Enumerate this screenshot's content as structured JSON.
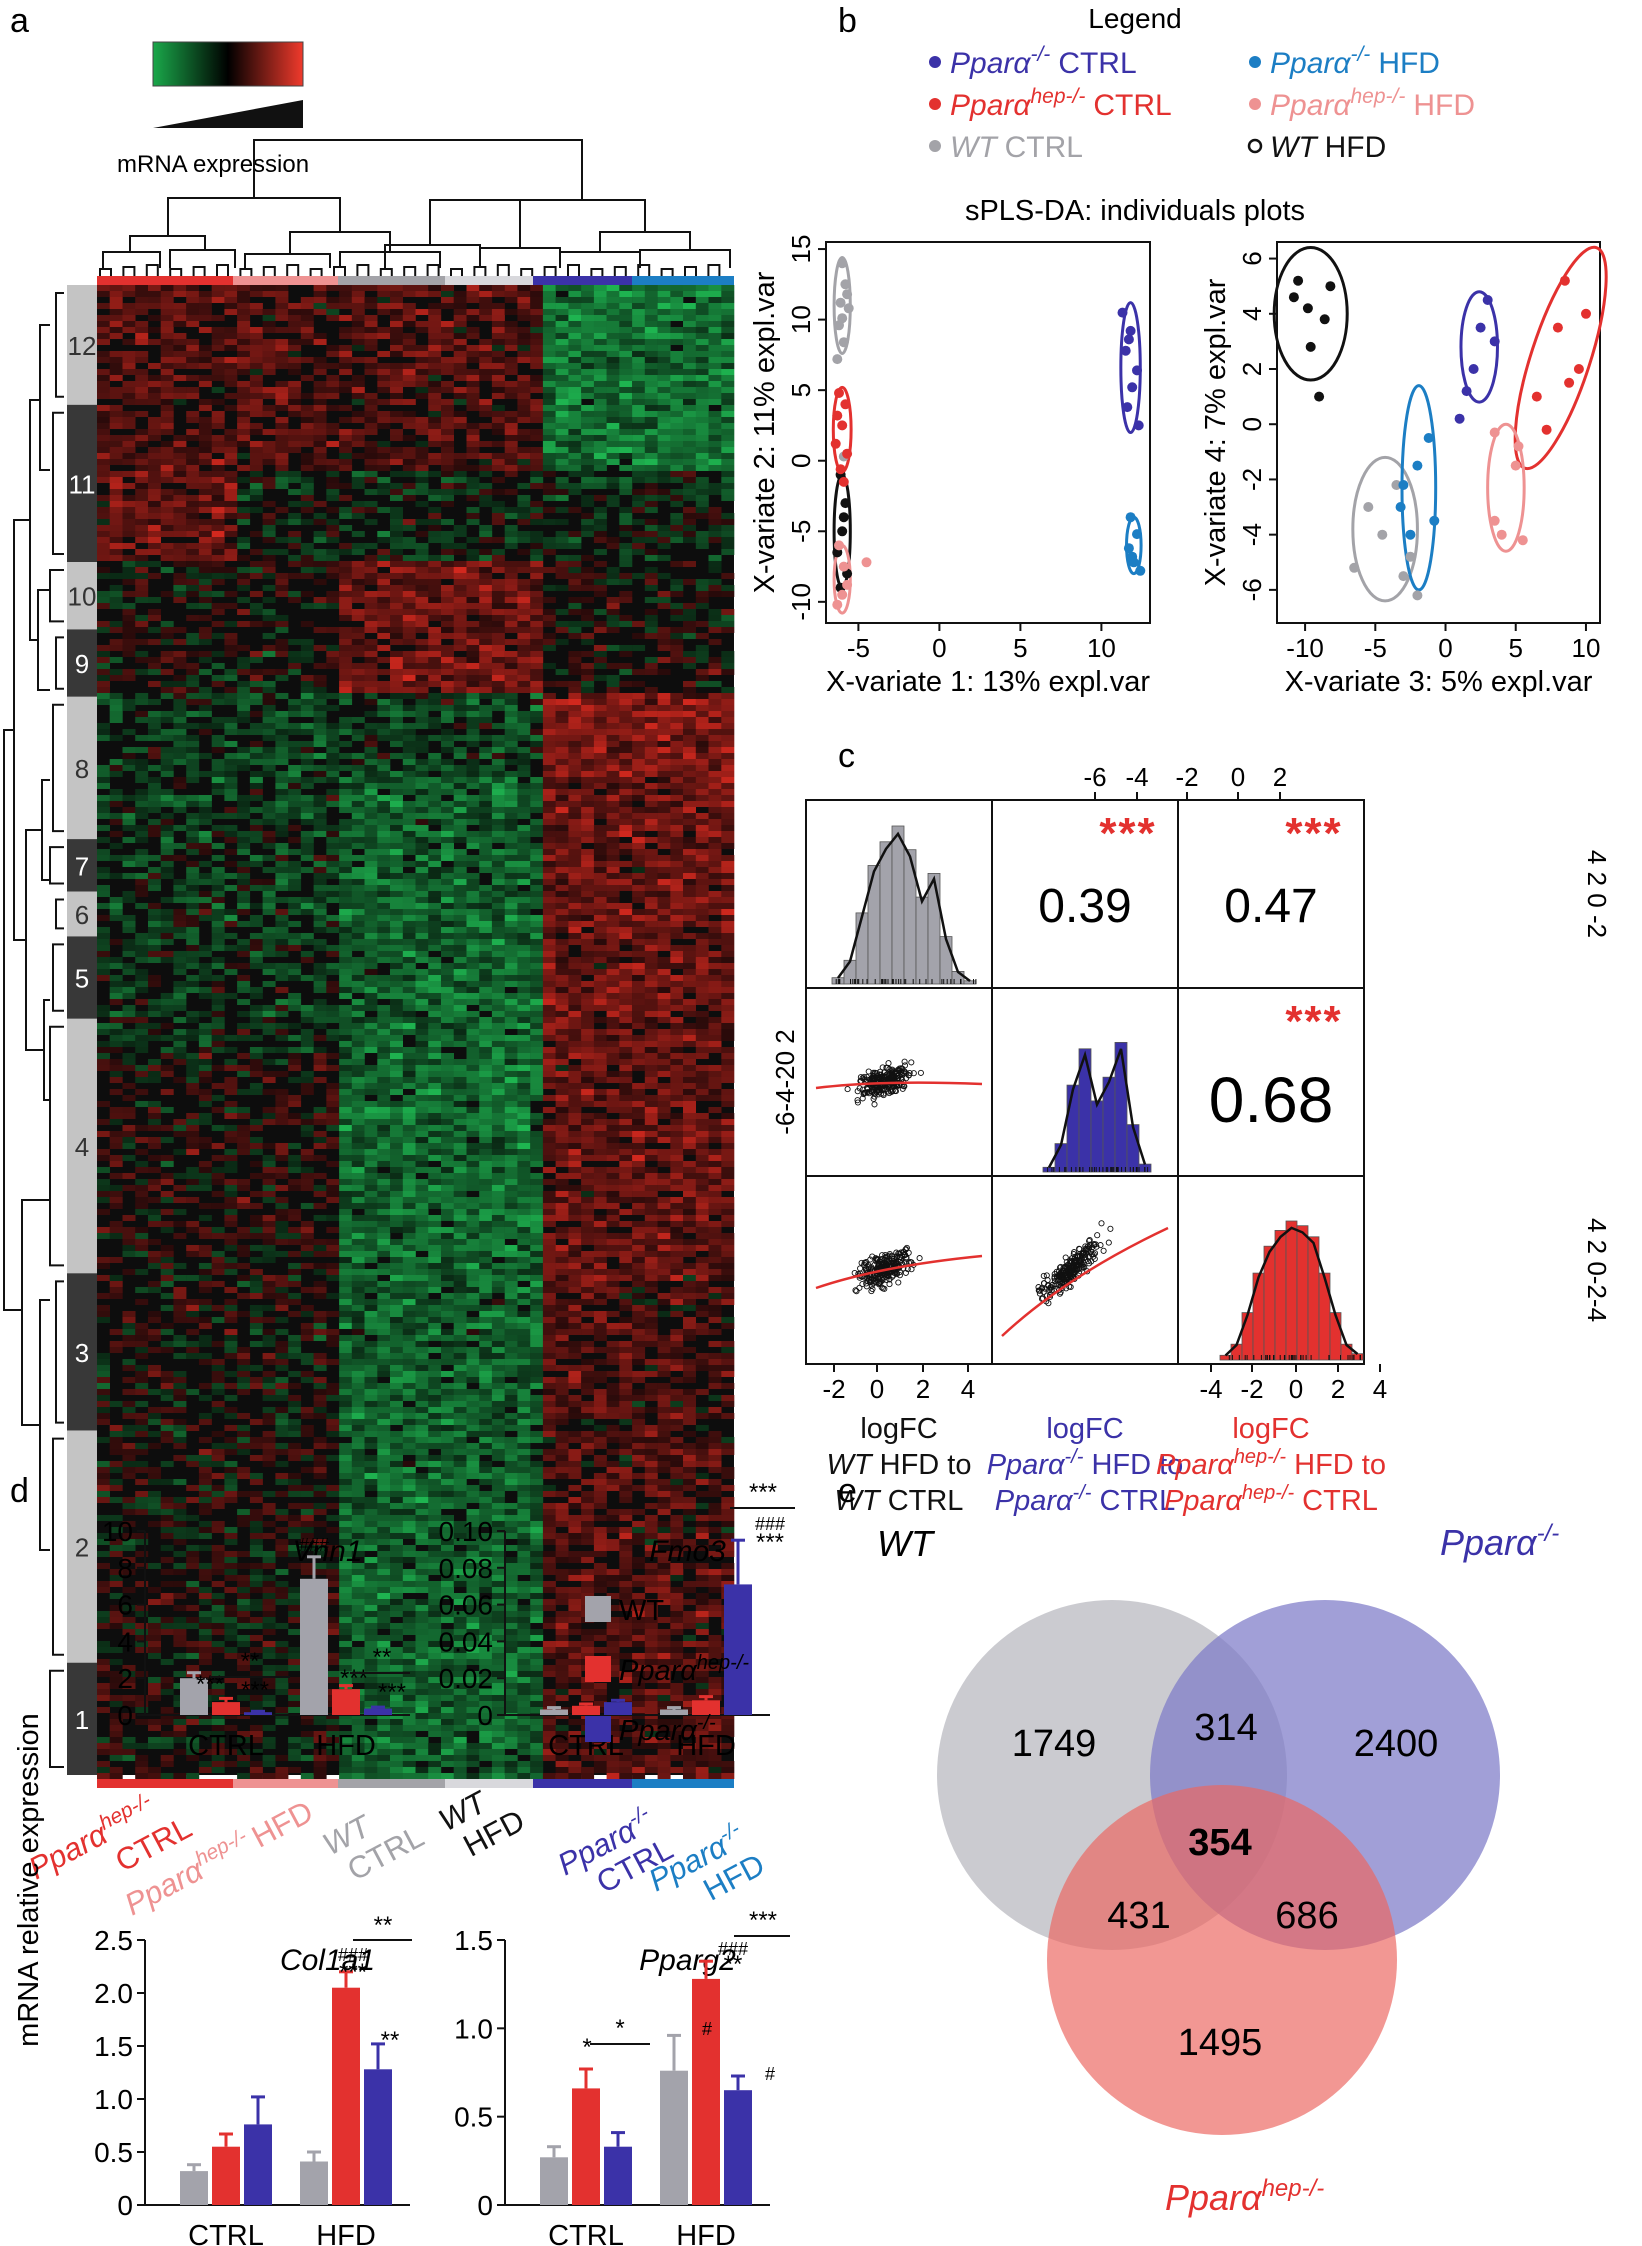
{
  "panels": {
    "a": "a",
    "b": "b",
    "c": "c",
    "d": "d",
    "e": "e"
  },
  "colors": {
    "ppara_ctrl": "#3b32a8",
    "ppara_hfd": "#1c7ec4",
    "hep_ctrl": "#e3312f",
    "hep_hfd": "#ee9292",
    "wt_ctrl": "#a3a3a8",
    "wt_hfd": "#111111",
    "wt_bar": "#a3a3ab",
    "hep_bar": "#e3312f",
    "ppara_bar": "#3b32a8",
    "venn_wt": "#c2c2c8",
    "venn_ppara": "#7d7ac7",
    "venn_hep": "#ec6560"
  },
  "heatmap": {
    "scale_label": "mRNA expression",
    "clusters": [
      "12",
      "11",
      "10",
      "9",
      "8",
      "7",
      "6",
      "5",
      "4",
      "3",
      "2",
      "1"
    ],
    "group_labels": [
      {
        "name": "Pparα",
        "sup": "hep-/-",
        "cond": "CTRL"
      },
      {
        "name": "Pparα",
        "sup": "hep-/-",
        "cond": "HFD"
      },
      {
        "name": "WT",
        "sup": "",
        "cond": "CTRL"
      },
      {
        "name": "WT",
        "sup": "",
        "cond": "HFD"
      },
      {
        "name": "Pparα",
        "sup": "-/-",
        "cond": "CTRL"
      },
      {
        "name": "Pparα",
        "sup": "-/-",
        "cond": "HFD"
      }
    ]
  },
  "legend": {
    "title": "Legend",
    "entries": [
      {
        "name": "Pparα",
        "sup": "-/-",
        "cond": "CTRL"
      },
      {
        "name": "Pparα",
        "sup": "-/-",
        "cond": "HFD"
      },
      {
        "name": "Pparα",
        "sup": "hep-/-",
        "cond": "CTRL"
      },
      {
        "name": "Pparα",
        "sup": "hep-/-",
        "cond": "HFD"
      },
      {
        "name": "WT",
        "sup": "",
        "cond": "CTRL"
      },
      {
        "name": "WT",
        "sup": "",
        "cond": "HFD"
      }
    ]
  },
  "chart_data": [
    {
      "type": "scatter",
      "id": "splsda_1_2",
      "title": "sPLS-DA: individuals plots",
      "xlabel": "X-variate 1: 13% expl.var",
      "ylabel": "X-variate 2: 11% expl.var",
      "xlim": [
        -7,
        13
      ],
      "ylim": [
        -11.5,
        15.5
      ],
      "xticks": [
        -5,
        0,
        5,
        10
      ],
      "yticks": [
        -10,
        -5,
        0,
        5,
        10,
        15
      ],
      "series": [
        {
          "name": "WT CTRL",
          "points": [
            [
              -6.0,
              14
            ],
            [
              -5.8,
              12.5
            ],
            [
              -6.1,
              11.2
            ],
            [
              -5.6,
              10.8
            ],
            [
              -6.2,
              9.6
            ],
            [
              -5.9,
              8.4
            ],
            [
              -6.3,
              7.2
            ],
            [
              -5.7,
              11.8
            ],
            [
              -6.0,
              10.1
            ],
            [
              -5.9,
              0.3
            ]
          ]
        },
        {
          "name": "WT HFD",
          "points": [
            [
              -6.1,
              -1
            ],
            [
              -5.8,
              -3
            ],
            [
              -6.0,
              -5
            ],
            [
              -6.3,
              -6.5
            ],
            [
              -5.7,
              -8
            ],
            [
              -6.1,
              -9
            ],
            [
              -5.9,
              -4
            ]
          ]
        },
        {
          "name": "Pparα hep-/- CTRL",
          "points": [
            [
              -6.2,
              4.8
            ],
            [
              -5.8,
              4
            ],
            [
              -6.0,
              2.5
            ],
            [
              -6.4,
              1.2
            ],
            [
              -5.7,
              0.5
            ],
            [
              -6.1,
              -0.6
            ],
            [
              -6.3,
              3.2
            ],
            [
              -5.9,
              -1.5
            ]
          ]
        },
        {
          "name": "Pparα hep-/- HFD",
          "points": [
            [
              -6.0,
              -9.5
            ],
            [
              -5.7,
              -8.8
            ],
            [
              -6.3,
              -10.2
            ],
            [
              -5.9,
              -7.5
            ],
            [
              -4.5,
              -7.2
            ],
            [
              -6.2,
              -6
            ]
          ]
        },
        {
          "name": "Pparα-/- CTRL",
          "points": [
            [
              11.3,
              10.5
            ],
            [
              11.8,
              9.2
            ],
            [
              11.5,
              7.8
            ],
            [
              12.2,
              6.4
            ],
            [
              11.9,
              5.2
            ],
            [
              11.6,
              3.8
            ],
            [
              12.3,
              2.5
            ],
            [
              11.7,
              8.6
            ]
          ]
        },
        {
          "name": "Pparα-/- HFD",
          "points": [
            [
              11.8,
              -4
            ],
            [
              12.2,
              -5.2
            ],
            [
              11.7,
              -6.2
            ],
            [
              12.0,
              -7.2
            ],
            [
              12.4,
              -7.8
            ],
            [
              11.9,
              -6.8
            ]
          ]
        }
      ]
    },
    {
      "type": "scatter",
      "id": "splsda_3_4",
      "xlabel": "X-variate 3: 5% expl.var",
      "ylabel": "X-variate 4: 7% expl.var",
      "xlim": [
        -12,
        11
      ],
      "ylim": [
        -7.2,
        6.6
      ],
      "xticks": [
        -10,
        -5,
        0,
        5,
        10
      ],
      "yticks": [
        -6,
        -4,
        -2,
        0,
        2,
        4,
        6
      ],
      "series": [
        {
          "name": "WT CTRL",
          "points": [
            [
              -6.5,
              -5.2
            ],
            [
              -4.5,
              -4
            ],
            [
              -3,
              -5.5
            ],
            [
              -2,
              -6.2
            ],
            [
              -5.5,
              -3
            ],
            [
              -3.5,
              -2.2
            ],
            [
              -2.5,
              -4.8
            ]
          ]
        },
        {
          "name": "WT HFD",
          "points": [
            [
              -10.5,
              5.2
            ],
            [
              -9.8,
              4.2
            ],
            [
              -8.6,
              3.8
            ],
            [
              -9.6,
              2.8
            ],
            [
              -8.2,
              5.0
            ],
            [
              -10.8,
              4.6
            ],
            [
              -9.0,
              1.0
            ]
          ]
        },
        {
          "name": "Pparα hep-/- CTRL",
          "points": [
            [
              6.5,
              1
            ],
            [
              8,
              3.5
            ],
            [
              8.5,
              5.2
            ],
            [
              9.5,
              2
            ],
            [
              10,
              4
            ],
            [
              7.2,
              -0.2
            ],
            [
              8.8,
              1.5
            ]
          ]
        },
        {
          "name": "Pparα hep-/- HFD",
          "points": [
            [
              3.5,
              -0.3
            ],
            [
              5,
              -1.5
            ],
            [
              3.5,
              -3.5
            ],
            [
              4,
              -4
            ],
            [
              5.2,
              -0.8
            ],
            [
              5.5,
              -4.2
            ]
          ]
        },
        {
          "name": "Pparα-/- CTRL",
          "points": [
            [
              1,
              0.2
            ],
            [
              2,
              2
            ],
            [
              2.5,
              3.5
            ],
            [
              3,
              4.5
            ],
            [
              3.5,
              3
            ],
            [
              1.5,
              1.2
            ]
          ]
        },
        {
          "name": "Pparα-/- HFD",
          "points": [
            [
              -3.2,
              -3
            ],
            [
              -2,
              -1.5
            ],
            [
              -1.2,
              -0.5
            ],
            [
              -2.5,
              -4
            ],
            [
              -3,
              -2.2
            ],
            [
              -0.8,
              -3.5
            ]
          ]
        }
      ]
    },
    {
      "type": "scatter",
      "id": "logfc_pairs",
      "xlabels": [
        {
          "l1": "logFC",
          "l2a": "WT",
          "l2b": " HFD to",
          "l3a": "WT",
          "l3b": " CTRL"
        },
        {
          "l1": "logFC",
          "l2a": "Pparα",
          "l2sup": "-/-",
          "l2b": " HFD to",
          "l3a": "Pparα",
          "l3sup": "-/-",
          "l3b": " CTRL"
        },
        {
          "l1": "logFC",
          "l2a": "Pparα",
          "l2sup": "hep-/-",
          "l2b": " HFD to",
          "l3a": "Pparα",
          "l3sup": "hep-/-",
          "l3b": " CTRL"
        }
      ],
      "correlations": [
        {
          "pair": "WT vs Pparα-/-",
          "r": "0.39",
          "sig": "***"
        },
        {
          "pair": "WT vs Pparα hep-/-",
          "r": "0.47",
          "sig": "***"
        },
        {
          "pair": "Pparα-/- vs Pparα hep-/-",
          "r": "0.68",
          "sig": "***"
        }
      ],
      "xticks_bottom1": [
        "-2",
        "0",
        "2",
        "4"
      ],
      "xticks_bottom3": [
        "-4",
        "-2",
        "0",
        "2",
        "4"
      ],
      "xticks_top": [
        "-6",
        "-4",
        "-2",
        "0",
        "2"
      ],
      "yticks_left": "-6-4-20 2",
      "yticks_right_top": "4 2 0 -2",
      "yticks_right_bottom": "4 2 0-2-4",
      "hist1": [
        0.04,
        0.15,
        0.45,
        0.75,
        0.9,
        1.0,
        0.85,
        0.55,
        0.7,
        0.3,
        0.08,
        0.02
      ],
      "hist2": [
        0.03,
        0.18,
        0.55,
        0.78,
        0.45,
        0.6,
        0.82,
        0.3,
        0.05
      ],
      "hist3": [
        0.03,
        0.1,
        0.3,
        0.55,
        0.72,
        0.82,
        0.88,
        0.85,
        0.78,
        0.55,
        0.3,
        0.1,
        0.04
      ]
    },
    {
      "type": "bar",
      "id": "vnn1",
      "title": "Vnn1",
      "categories": [
        "CTRL",
        "HFD"
      ],
      "ylim": [
        0,
        10
      ],
      "yticks": [
        0,
        2,
        4,
        6,
        8,
        10
      ],
      "series": [
        {
          "name": "WT",
          "values": [
            2.0,
            7.4
          ],
          "errors": [
            0.3,
            1.2
          ]
        },
        {
          "name": "Pparα hep-/-",
          "values": [
            0.7,
            1.4
          ],
          "errors": [
            0.2,
            0.2
          ]
        },
        {
          "name": "Pparα-/-",
          "values": [
            0.15,
            0.35
          ],
          "errors": [
            0.05,
            0.08
          ]
        }
      ],
      "annotations": {
        "ctrl_hep": "***",
        "ctrl_ppara": "***",
        "ctrl_bracket": "**",
        "hfd_wt": "###",
        "hfd_hep": "***",
        "hfd_ppara": "***",
        "hfd_bracket": "**"
      }
    },
    {
      "type": "bar",
      "id": "fmo3",
      "title": "Fmo3",
      "categories": [
        "CTRL",
        "HFD"
      ],
      "ylim": [
        0,
        0.1
      ],
      "yticks": [
        "0",
        "0.02",
        "0.04",
        "0.06",
        "0.08",
        "0.10"
      ],
      "series": [
        {
          "name": "WT",
          "values": [
            0.003,
            0.003
          ],
          "errors": [
            0.001,
            0.001
          ]
        },
        {
          "name": "Pparα hep-/-",
          "values": [
            0.005,
            0.008
          ],
          "errors": [
            0.001,
            0.002
          ]
        },
        {
          "name": "Pparα-/-",
          "values": [
            0.007,
            0.071
          ],
          "errors": [
            0.001,
            0.024
          ]
        }
      ],
      "annotations": {
        "hfd_ppara_a": "***",
        "hfd_ppara_b": "###",
        "hfd_bracket": "***"
      },
      "legend": [
        {
          "name": "WT",
          "sup": ""
        },
        {
          "name": "Pparα",
          "sup": "hep-/-"
        },
        {
          "name": "Pparα",
          "sup": "-/-"
        }
      ]
    },
    {
      "type": "bar",
      "id": "col1a1",
      "title": "Col1a1",
      "categories": [
        "CTRL",
        "HFD"
      ],
      "ylim": [
        0,
        2.5
      ],
      "yticks": [
        "0",
        "0.5",
        "1.0",
        "1.5",
        "2.0",
        "2.5"
      ],
      "series": [
        {
          "name": "WT",
          "values": [
            0.32,
            0.41
          ],
          "errors": [
            0.06,
            0.09
          ]
        },
        {
          "name": "Pparα hep-/-",
          "values": [
            0.55,
            2.05
          ],
          "errors": [
            0.12,
            0.15
          ]
        },
        {
          "name": "Pparα-/-",
          "values": [
            0.76,
            1.28
          ],
          "errors": [
            0.26,
            0.24
          ]
        }
      ],
      "annotations": {
        "hfd_hep_a": "***",
        "hfd_hep_b": "###",
        "hfd_ppara": "**",
        "hfd_bracket": "**"
      }
    },
    {
      "type": "bar",
      "id": "pparg2",
      "title": "Pparg2",
      "categories": [
        "CTRL",
        "HFD"
      ],
      "ylim": [
        0,
        1.5
      ],
      "yticks": [
        "0",
        "0.5",
        "1.0",
        "1.5"
      ],
      "series": [
        {
          "name": "WT",
          "values": [
            0.27,
            0.76
          ],
          "errors": [
            0.06,
            0.2
          ]
        },
        {
          "name": "Pparα hep-/-",
          "values": [
            0.66,
            1.28
          ],
          "errors": [
            0.11,
            0.1
          ]
        },
        {
          "name": "Pparα-/-",
          "values": [
            0.33,
            0.65
          ],
          "errors": [
            0.08,
            0.08
          ]
        }
      ],
      "annotations": {
        "ctrl_hep": "*",
        "ctrl_bracket": "*",
        "hfd_wt": "#",
        "hfd_hep_a": "**",
        "hfd_hep_b": "###",
        "hfd_ppara": "#",
        "hfd_bracket": "***"
      }
    }
  ],
  "bar_ylabel": "mRNA relative expression",
  "venn": {
    "labels": {
      "wt": "WT",
      "ppara": "Pparα",
      "ppara_sup": "-/-",
      "hep": "Pparα",
      "hep_sup": "hep-/-"
    },
    "counts": {
      "wt_only": "1749",
      "ppara_only": "2400",
      "hep_only": "1495",
      "wt_ppara": "314",
      "wt_hep": "431",
      "ppara_hep": "686",
      "all": "354"
    }
  }
}
